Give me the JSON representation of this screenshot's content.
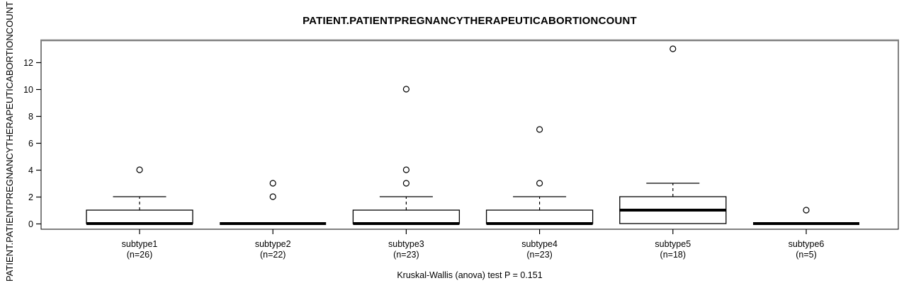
{
  "title": "PATIENT.PATIENTPREGNANCYTHERAPEUTICABORTIONCOUNT",
  "footer": "Kruskal-Wallis (anova) test P = 0.151",
  "chart_data": {
    "type": "boxplot",
    "title": "PATIENT.PATIENTPREGNANCYTHERAPEUTICABORTIONCOUNT",
    "xlabel": "",
    "ylabel": "PATIENT.PATIENTPREGNANCYTHERAPEUTICABORTIONCOUNT",
    "footer_annotation": "Kruskal-Wallis (anova) test P = 0.151",
    "y_ticks": [
      0,
      2,
      4,
      6,
      8,
      10,
      12
    ],
    "ylim": [
      -0.5,
      13.6
    ],
    "grid": false,
    "legend": "none",
    "colors": {
      "box_fill": "#ffffff",
      "stroke": "#000000",
      "frame_top": "#808080",
      "background": "#ffffff"
    },
    "groups": [
      {
        "label": "subtype1",
        "n_label": "(n=26)",
        "n": 26,
        "q1": 0,
        "median": 0,
        "q3": 1,
        "whisker_low": 0,
        "whisker_high": 2,
        "outliers": [
          4
        ]
      },
      {
        "label": "subtype2",
        "n_label": "(n=22)",
        "n": 22,
        "q1": 0,
        "median": 0,
        "q3": 0,
        "whisker_low": 0,
        "whisker_high": 0,
        "outliers": [
          2,
          3
        ]
      },
      {
        "label": "subtype3",
        "n_label": "(n=23)",
        "n": 23,
        "q1": 0,
        "median": 0,
        "q3": 1,
        "whisker_low": 0,
        "whisker_high": 2,
        "outliers": [
          3,
          4,
          10
        ]
      },
      {
        "label": "subtype4",
        "n_label": "(n=23)",
        "n": 23,
        "q1": 0,
        "median": 0,
        "q3": 1,
        "whisker_low": 0,
        "whisker_high": 2,
        "outliers": [
          3,
          7
        ]
      },
      {
        "label": "subtype5",
        "n_label": "(n=18)",
        "n": 18,
        "q1": 0,
        "median": 1,
        "q3": 2,
        "whisker_low": 0,
        "whisker_high": 3,
        "outliers": [
          13
        ]
      },
      {
        "label": "subtype6",
        "n_label": "(n=5)",
        "n": 5,
        "q1": 0,
        "median": 0,
        "q3": 0,
        "whisker_low": 0,
        "whisker_high": 0,
        "outliers": [
          1
        ]
      }
    ]
  }
}
